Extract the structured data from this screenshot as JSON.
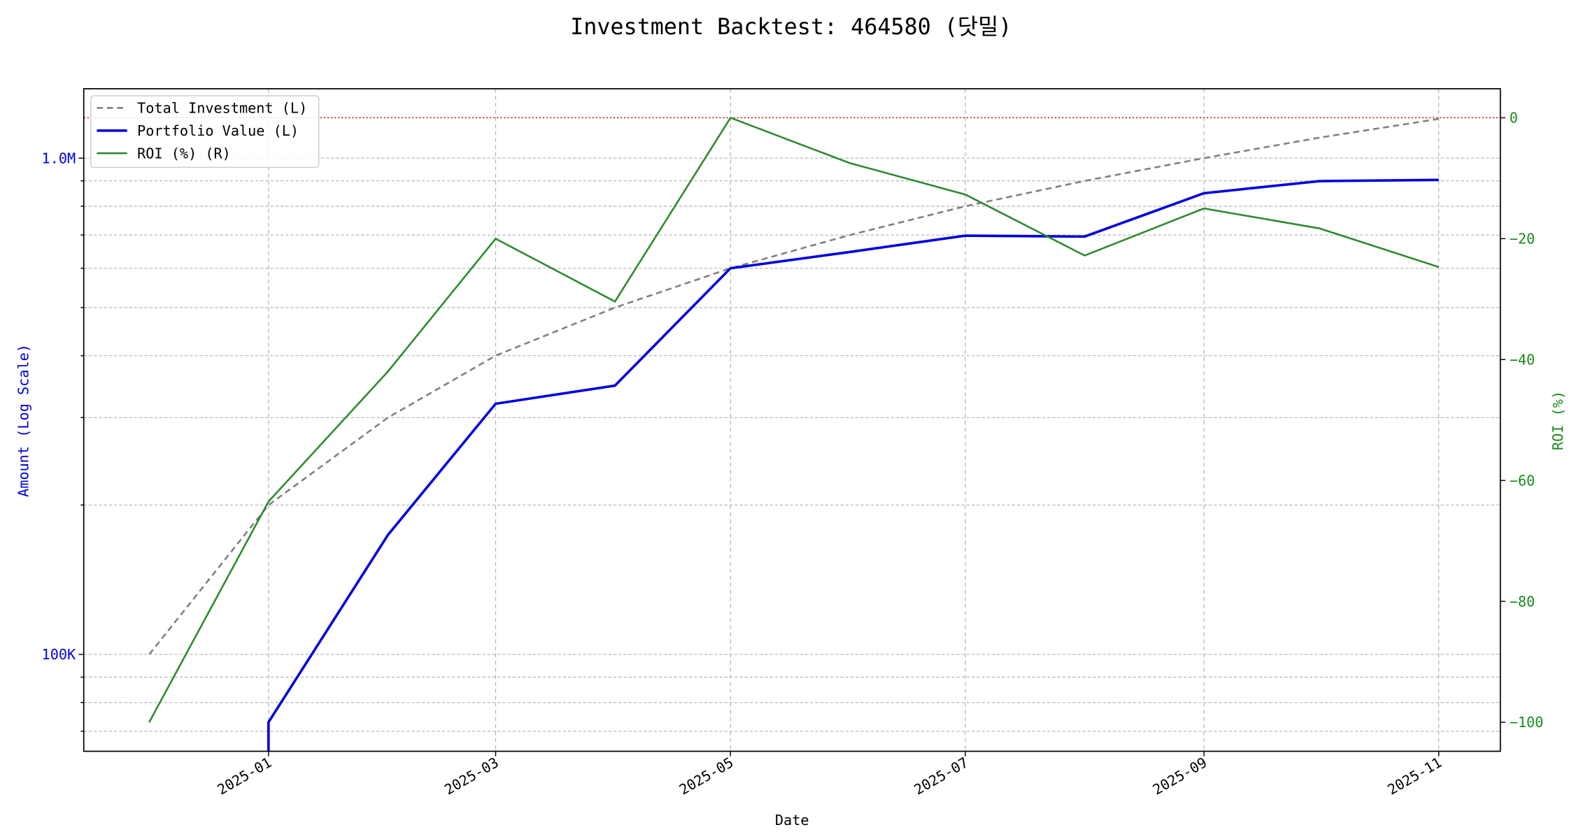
{
  "chart_data": {
    "type": "line",
    "title": "Investment Backtest: 464580 (닷밀)",
    "xlabel": "Date",
    "ylabel_left": "Amount (Log Scale)",
    "ylabel_right": "ROI (%)",
    "left_scale": "log",
    "xlim": [
      "2024-11-14",
      "2025-11-17"
    ],
    "ylim_left": [
      63800,
      1380000
    ],
    "ylim_right": [
      -104.8,
      4.8
    ],
    "x_ticks": [
      "2025-01-01",
      "2025-03-01",
      "2025-05-01",
      "2025-07-01",
      "2025-09-01",
      "2025-11-01"
    ],
    "x_tick_labels": [
      "2025-01",
      "2025-03",
      "2025-05",
      "2025-07",
      "2025-09",
      "2025-11"
    ],
    "left_ticks": [
      100000,
      1000000
    ],
    "left_tick_labels": [
      "100K",
      "1.0M"
    ],
    "left_minor_ticks": [
      70000,
      80000,
      90000,
      200000,
      300000,
      400000,
      500000,
      600000,
      700000,
      800000,
      900000
    ],
    "right_ticks": [
      0,
      -20,
      -40,
      -60,
      -80,
      -100
    ],
    "right_tick_labels": [
      "0",
      "−20",
      "−40",
      "−60",
      "−80",
      "−100"
    ],
    "grid": true,
    "legend_position": "top-left",
    "reference_line": {
      "axis": "right",
      "value": 0,
      "color": "#d62728",
      "style": "dotted"
    },
    "x": [
      "2024-12-01",
      "2025-01-01",
      "2025-02-01",
      "2025-03-01",
      "2025-04-01",
      "2025-05-01",
      "2025-06-01",
      "2025-07-01",
      "2025-08-01",
      "2025-09-01",
      "2025-10-01",
      "2025-11-01"
    ],
    "series": [
      {
        "name": "Total Investment (L)",
        "axis": "left",
        "color": "#808080",
        "style": "dashed",
        "values": [
          100000,
          200000,
          300000,
          400000,
          500000,
          600000,
          700000,
          800000,
          900000,
          1000000,
          1100000,
          1200000
        ]
      },
      {
        "name": "Portfolio Value (L)",
        "axis": "left",
        "color": "#0000e0",
        "style": "solid",
        "values": [
          0,
          73000,
          174000,
          320000,
          348000,
          600000,
          647000,
          698000,
          695000,
          850000,
          899000,
          904000
        ]
      },
      {
        "name": "ROI (%) (R)",
        "axis": "right",
        "color": "#2e8b2e",
        "style": "solid",
        "values": [
          -100,
          -63.5,
          -42,
          -20,
          -30.4,
          0,
          -7.5,
          -12.7,
          -22.8,
          -15,
          -18.3,
          -24.7
        ]
      }
    ],
    "colors": {
      "left_axis": "#0000e0",
      "right_axis": "#1a8a1a"
    }
  }
}
